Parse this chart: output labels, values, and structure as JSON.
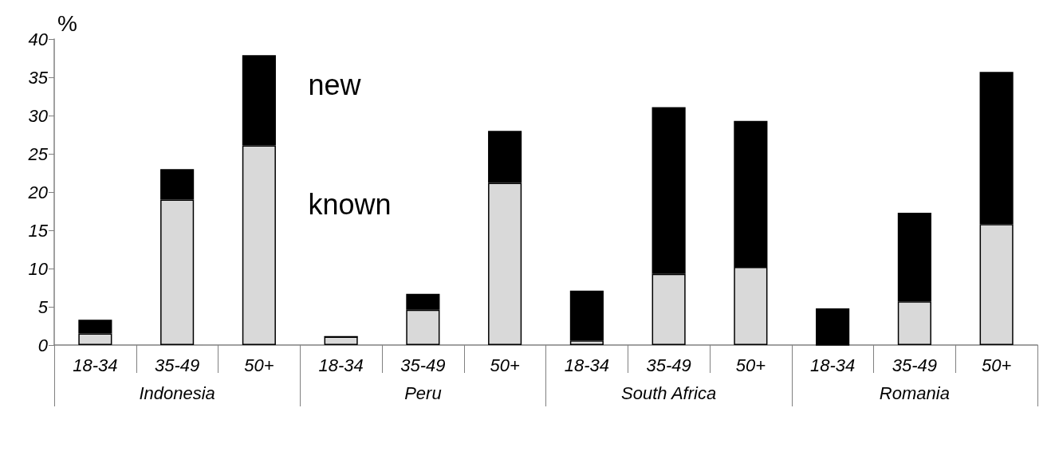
{
  "chart_data": {
    "type": "bar",
    "stacked": true,
    "ylabel": "%",
    "categories": [
      "18-34",
      "35-49",
      "50+",
      "18-34",
      "35-49",
      "50+",
      "18-34",
      "35-49",
      "50+",
      "18-34",
      "35-49",
      "50+"
    ],
    "annotations": [
      "Indonesia",
      "Peru",
      "South Africa",
      "Romania"
    ],
    "series": [
      {
        "name": "known",
        "color": "#d9d9d9",
        "values": [
          1.5,
          19.0,
          26.1,
          1.1,
          4.6,
          21.2,
          0.6,
          9.3,
          10.2,
          0,
          5.7,
          15.8
        ]
      },
      {
        "name": "new",
        "color": "#000000",
        "values": [
          1.8,
          4.0,
          11.8,
          0,
          2.1,
          6.8,
          6.5,
          21.8,
          19.1,
          4.8,
          11.6,
          19.9
        ]
      }
    ],
    "ylim": [
      0,
      40
    ],
    "yticks": [
      0,
      5,
      10,
      15,
      20,
      25,
      30,
      35,
      40
    ],
    "grid": false,
    "legend": false
  }
}
